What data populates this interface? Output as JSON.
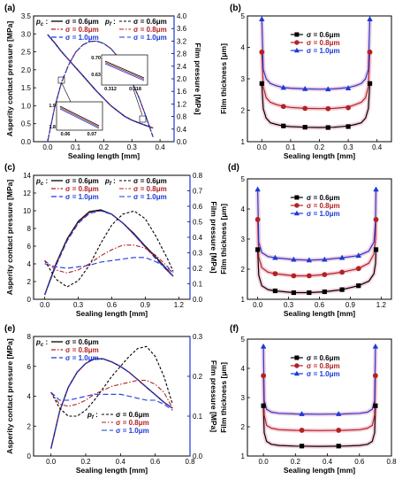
{
  "chart_data": [
    {
      "panel": "(a)",
      "type": "line",
      "xlabel": "Sealing length [mm]",
      "ylabel": "Asperity contact pressure [MPa]",
      "y2label": "Film pressure [MPa]",
      "xlim": [
        -0.05,
        0.45
      ],
      "xticks": [
        0.0,
        0.1,
        0.2,
        0.3,
        0.4
      ],
      "ylim": [
        0,
        3.5
      ],
      "yticks": [
        0,
        0.5,
        1.0,
        1.5,
        2.0,
        2.5,
        3.0,
        3.5
      ],
      "y2lim": [
        0,
        4.0
      ],
      "y2ticks": [
        0.0,
        0.4,
        0.8,
        1.2,
        1.6,
        2.0,
        2.4,
        2.8,
        3.2,
        3.6,
        4.0
      ],
      "legend": {
        "pc_label": "p",
        "pc_sub": "c",
        "pf_label": "p",
        "pf_sub": "f",
        "entries": [
          "σ = 0.6μm",
          "σ = 0.8μm",
          "σ = 1.0μm"
        ]
      },
      "insets": [
        {
          "ticks_y": [
            "0.70",
            "0.63"
          ],
          "ticks_x": [
            "0.312",
            "0.318"
          ]
        },
        {
          "ticks_y": [
            "1.9",
            "1.8"
          ],
          "ticks_x": [
            "0.06",
            "0.07"
          ]
        }
      ],
      "x": [
        0.0,
        0.025,
        0.05,
        0.075,
        0.1,
        0.125,
        0.15,
        0.175,
        0.2,
        0.225,
        0.25,
        0.275,
        0.3,
        0.325,
        0.35,
        0.375
      ],
      "series": [
        {
          "name": "p_c σ = 0.6μm",
          "axis": "y",
          "values": [
            2.98,
            2.75,
            2.5,
            2.28,
            2.06,
            1.84,
            1.62,
            1.4,
            1.2,
            1.0,
            0.85,
            0.7,
            0.6,
            0.52,
            0.45,
            0.38
          ]
        },
        {
          "name": "p_c σ = 0.8μm",
          "axis": "y",
          "values": [
            2.98,
            2.75,
            2.5,
            2.28,
            2.06,
            1.84,
            1.62,
            1.4,
            1.2,
            1.0,
            0.85,
            0.7,
            0.6,
            0.52,
            0.45,
            0.38
          ]
        },
        {
          "name": "p_c σ = 1.0μm",
          "axis": "y",
          "values": [
            2.98,
            2.75,
            2.5,
            2.28,
            2.06,
            1.84,
            1.62,
            1.4,
            1.2,
            1.0,
            0.85,
            0.7,
            0.6,
            0.52,
            0.45,
            0.38
          ]
        },
        {
          "name": "p_f σ = 0.6μm",
          "axis": "y2",
          "values": [
            0.0,
            1.1,
            1.9,
            2.45,
            2.85,
            3.08,
            3.19,
            3.2,
            3.12,
            2.96,
            2.7,
            2.35,
            1.9,
            1.4,
            0.8,
            0.15
          ]
        },
        {
          "name": "p_f σ = 0.8μm",
          "axis": "y2",
          "values": [
            0.0,
            1.1,
            1.9,
            2.45,
            2.85,
            3.08,
            3.19,
            3.2,
            3.12,
            2.96,
            2.7,
            2.35,
            1.9,
            1.4,
            0.8,
            0.15
          ]
        },
        {
          "name": "p_f σ = 1.0μm",
          "axis": "y2",
          "values": [
            0.0,
            1.1,
            1.9,
            2.45,
            2.85,
            3.08,
            3.19,
            3.2,
            3.12,
            2.96,
            2.7,
            2.35,
            1.9,
            1.4,
            0.8,
            0.15
          ]
        }
      ]
    },
    {
      "panel": "(b)",
      "type": "line",
      "xlabel": "Sealing length [mm]",
      "ylabel": "Film thickness [μm]",
      "xlim": [
        -0.05,
        0.45
      ],
      "xticks": [
        0.0,
        0.1,
        0.2,
        0.3,
        0.4
      ],
      "ylim": [
        1,
        5
      ],
      "yticks": [
        1,
        2,
        3,
        4,
        5
      ],
      "legend": {
        "entries": [
          "σ = 0.6μm",
          "σ = 0.8μm",
          "σ = 1.0μm"
        ]
      },
      "x": [
        0.0,
        0.005,
        0.015,
        0.03,
        0.05,
        0.075,
        0.1,
        0.15,
        0.2,
        0.25,
        0.3,
        0.325,
        0.345,
        0.36,
        0.37,
        0.375
      ],
      "series": [
        {
          "name": "σ = 0.6μm",
          "values": [
            2.85,
            2.05,
            1.75,
            1.6,
            1.55,
            1.5,
            1.48,
            1.46,
            1.45,
            1.46,
            1.5,
            1.55,
            1.6,
            1.75,
            2.05,
            2.85
          ]
        },
        {
          "name": "σ = 0.8μm",
          "values": [
            3.85,
            2.75,
            2.4,
            2.25,
            2.18,
            2.12,
            2.09,
            2.06,
            2.05,
            2.06,
            2.1,
            2.18,
            2.25,
            2.4,
            2.75,
            3.85
          ]
        },
        {
          "name": "σ = 1.0μm",
          "values": [
            4.9,
            3.3,
            3.0,
            2.85,
            2.78,
            2.72,
            2.7,
            2.68,
            2.67,
            2.68,
            2.72,
            2.78,
            2.85,
            3.0,
            3.3,
            4.9
          ]
        }
      ],
      "markers": [
        {
          "series": 0,
          "x": [
            0.0,
            0.075,
            0.15,
            0.23,
            0.3,
            0.375
          ],
          "y": [
            2.85,
            1.5,
            1.46,
            1.45,
            1.48,
            2.85
          ]
        },
        {
          "series": 1,
          "x": [
            0.0,
            0.075,
            0.15,
            0.23,
            0.3,
            0.375
          ],
          "y": [
            3.85,
            2.12,
            2.06,
            2.05,
            2.08,
            3.85
          ]
        },
        {
          "series": 2,
          "x": [
            0.0,
            0.075,
            0.15,
            0.23,
            0.3,
            0.375
          ],
          "y": [
            4.9,
            2.72,
            2.68,
            2.67,
            2.7,
            4.9
          ]
        }
      ]
    },
    {
      "panel": "(c)",
      "type": "line",
      "xlabel": "Sealing length [mm]",
      "ylabel": "Asperity contact pressure [MPa]",
      "y2label": "Film pressure [MPa]",
      "xlim": [
        -0.1,
        1.3
      ],
      "xticks": [
        0.0,
        0.3,
        0.6,
        0.9,
        1.2
      ],
      "ylim": [
        0,
        14
      ],
      "yticks": [
        0,
        2,
        4,
        6,
        8,
        10,
        12,
        14
      ],
      "y2lim": [
        0,
        0.8
      ],
      "y2ticks": [
        0.0,
        0.1,
        0.2,
        0.3,
        0.4,
        0.5,
        0.6,
        0.7,
        0.8
      ],
      "legend": {
        "pc_label": "p",
        "pc_sub": "c",
        "pf_label": "p",
        "pf_sub": "f",
        "entries": [
          "σ = 0.6μm",
          "σ = 0.8μm",
          "σ = 1.0μm"
        ]
      },
      "x": [
        0.0,
        0.1,
        0.2,
        0.3,
        0.4,
        0.5,
        0.6,
        0.7,
        0.8,
        0.9,
        1.0,
        1.1,
        1.15
      ],
      "series": [
        {
          "name": "p_c σ = 0.6μm",
          "axis": "y",
          "values": [
            0.5,
            4.0,
            6.8,
            8.8,
            9.9,
            10.1,
            9.6,
            8.6,
            7.4,
            6.0,
            4.7,
            3.3,
            2.6
          ]
        },
        {
          "name": "p_c σ = 0.8μm",
          "axis": "y",
          "values": [
            0.5,
            3.9,
            6.7,
            8.7,
            9.8,
            10.0,
            9.6,
            8.6,
            7.3,
            5.9,
            4.6,
            3.2,
            2.6
          ]
        },
        {
          "name": "p_c σ = 1.0μm",
          "axis": "y",
          "values": [
            0.5,
            3.8,
            6.6,
            8.6,
            9.7,
            10.0,
            9.6,
            8.6,
            7.3,
            5.9,
            4.5,
            3.2,
            2.6
          ]
        },
        {
          "name": "p_f σ = 0.6μm",
          "axis": "y2",
          "values": [
            0.25,
            0.13,
            0.08,
            0.12,
            0.22,
            0.36,
            0.48,
            0.55,
            0.57,
            0.52,
            0.4,
            0.26,
            0.18
          ]
        },
        {
          "name": "p_f σ = 0.8μm",
          "axis": "y2",
          "values": [
            0.25,
            0.19,
            0.17,
            0.19,
            0.23,
            0.28,
            0.32,
            0.35,
            0.35,
            0.33,
            0.28,
            0.21,
            0.17
          ]
        },
        {
          "name": "p_f σ = 1.0μm",
          "axis": "y2",
          "values": [
            0.23,
            0.21,
            0.2,
            0.21,
            0.22,
            0.24,
            0.25,
            0.26,
            0.27,
            0.27,
            0.24,
            0.2,
            0.17
          ]
        }
      ]
    },
    {
      "panel": "(d)",
      "type": "line",
      "xlabel": "Sealing length [mm]",
      "ylabel": "Film thickness [μm]",
      "xlim": [
        -0.1,
        1.3
      ],
      "xticks": [
        0.0,
        0.3,
        0.6,
        0.9,
        1.2
      ],
      "ylim": [
        1,
        5
      ],
      "yticks": [
        1,
        2,
        3,
        4,
        5
      ],
      "legend": {
        "entries": [
          "σ = 0.6μm",
          "σ = 0.8μm",
          "σ = 1.0μm"
        ]
      },
      "x": [
        0.0,
        0.01,
        0.04,
        0.1,
        0.17,
        0.35,
        0.5,
        0.65,
        0.82,
        0.98,
        1.08,
        1.13,
        1.145,
        1.15
      ],
      "series": [
        {
          "name": "σ = 0.6μm",
          "values": [
            2.65,
            1.8,
            1.45,
            1.32,
            1.28,
            1.22,
            1.22,
            1.25,
            1.32,
            1.45,
            1.6,
            1.85,
            2.2,
            2.65
          ]
        },
        {
          "name": "σ = 0.8μm",
          "values": [
            3.65,
            2.4,
            2.05,
            1.9,
            1.85,
            1.78,
            1.78,
            1.82,
            1.9,
            2.02,
            2.2,
            2.5,
            3.0,
            3.65
          ]
        },
        {
          "name": "σ = 1.0μm",
          "values": [
            4.65,
            2.9,
            2.55,
            2.42,
            2.38,
            2.32,
            2.3,
            2.32,
            2.38,
            2.45,
            2.6,
            2.9,
            3.6,
            4.65
          ]
        }
      ],
      "markers": [
        {
          "series": 0,
          "x": [
            0.0,
            0.17,
            0.35,
            0.5,
            0.65,
            0.82,
            0.98,
            1.15
          ],
          "y": [
            2.65,
            1.28,
            1.22,
            1.22,
            1.25,
            1.32,
            1.45,
            2.65
          ]
        },
        {
          "series": 1,
          "x": [
            0.0,
            0.17,
            0.35,
            0.5,
            0.65,
            0.82,
            0.98,
            1.15
          ],
          "y": [
            3.65,
            1.85,
            1.78,
            1.78,
            1.82,
            1.9,
            2.02,
            3.65
          ]
        },
        {
          "series": 2,
          "x": [
            0.0,
            0.17,
            0.35,
            0.5,
            0.65,
            0.82,
            0.98,
            1.15
          ],
          "y": [
            4.65,
            2.38,
            2.32,
            2.3,
            2.32,
            2.38,
            2.45,
            4.65
          ]
        }
      ]
    },
    {
      "panel": "(e)",
      "type": "line",
      "xlabel": "Sealing length [mm]",
      "ylabel": "Asperity contact pressure [MPa]",
      "y2label": "Film pressure [MPa]",
      "xlim": [
        -0.1,
        0.8
      ],
      "xticks": [
        0.0,
        0.2,
        0.4,
        0.6,
        0.8
      ],
      "ylim": [
        0,
        8
      ],
      "yticks": [
        0,
        2,
        4,
        6,
        8
      ],
      "y2lim": [
        0,
        0.3
      ],
      "y2ticks": [
        0.0,
        0.1,
        0.2,
        0.3
      ],
      "legend": {
        "pc_label": "p",
        "pc_sub": "c",
        "pf_label": "p",
        "pf_sub": "f",
        "entries": [
          "σ = 0.6μm",
          "σ = 0.8μm",
          "σ = 1.0μm"
        ]
      },
      "x": [
        0.0,
        0.05,
        0.1,
        0.15,
        0.2,
        0.25,
        0.3,
        0.35,
        0.4,
        0.45,
        0.5,
        0.55,
        0.6,
        0.65,
        0.7
      ],
      "series": [
        {
          "name": "p_c σ = 0.6μm",
          "axis": "y",
          "values": [
            0.5,
            3.0,
            4.6,
            5.6,
            6.2,
            6.5,
            6.5,
            6.3,
            6.0,
            5.6,
            5.1,
            4.6,
            4.1,
            3.6,
            3.2
          ]
        },
        {
          "name": "p_c σ = 0.8μm",
          "axis": "y",
          "values": [
            0.5,
            3.0,
            4.6,
            5.6,
            6.2,
            6.5,
            6.5,
            6.3,
            6.0,
            5.6,
            5.1,
            4.6,
            4.1,
            3.6,
            3.2
          ]
        },
        {
          "name": "p_c σ = 1.0μm",
          "axis": "y",
          "values": [
            0.5,
            3.0,
            4.6,
            5.6,
            6.2,
            6.5,
            6.5,
            6.3,
            6.0,
            5.6,
            5.1,
            4.6,
            4.1,
            3.6,
            3.2
          ]
        },
        {
          "name": "p_f σ = 0.6μm",
          "axis": "y2",
          "values": [
            0.16,
            0.12,
            0.1,
            0.1,
            0.115,
            0.14,
            0.17,
            0.2,
            0.225,
            0.25,
            0.27,
            0.275,
            0.25,
            0.2,
            0.13
          ]
        },
        {
          "name": "p_f σ = 0.8μm",
          "axis": "y2",
          "values": [
            0.16,
            0.13,
            0.125,
            0.13,
            0.14,
            0.155,
            0.165,
            0.175,
            0.18,
            0.185,
            0.19,
            0.19,
            0.18,
            0.16,
            0.12
          ]
        },
        {
          "name": "p_f σ = 1.0μm",
          "axis": "y2",
          "values": [
            0.16,
            0.14,
            0.14,
            0.145,
            0.15,
            0.155,
            0.155,
            0.155,
            0.155,
            0.15,
            0.145,
            0.14,
            0.14,
            0.13,
            0.115
          ]
        }
      ]
    },
    {
      "panel": "(f)",
      "type": "line",
      "xlabel": "Sealing length [mm]",
      "ylabel": "Film thickness [μm]",
      "xlim": [
        -0.1,
        0.8
      ],
      "xticks": [
        0.0,
        0.2,
        0.4,
        0.6,
        0.8
      ],
      "ylim": [
        1,
        5
      ],
      "yticks": [
        1,
        2,
        3,
        4,
        5
      ],
      "legend": {
        "entries": [
          "σ = 0.6μm",
          "σ = 0.8μm",
          "σ = 1.0μm"
        ]
      },
      "x": [
        0.0,
        0.005,
        0.02,
        0.05,
        0.1,
        0.2,
        0.35,
        0.5,
        0.6,
        0.65,
        0.68,
        0.695,
        0.7
      ],
      "series": [
        {
          "name": "σ = 0.6μm",
          "values": [
            2.72,
            1.8,
            1.5,
            1.4,
            1.36,
            1.34,
            1.33,
            1.34,
            1.36,
            1.4,
            1.5,
            1.8,
            2.72
          ]
        },
        {
          "name": "σ = 0.8μm",
          "values": [
            3.75,
            2.4,
            2.05,
            1.95,
            1.9,
            1.88,
            1.87,
            1.88,
            1.9,
            1.95,
            2.05,
            2.4,
            3.75
          ]
        },
        {
          "name": "σ = 1.0μm",
          "values": [
            4.75,
            2.9,
            2.6,
            2.5,
            2.46,
            2.44,
            2.43,
            2.44,
            2.46,
            2.5,
            2.6,
            2.9,
            4.75
          ]
        }
      ],
      "markers": [
        {
          "series": 0,
          "x": [
            0.0,
            0.24,
            0.47,
            0.7
          ],
          "y": [
            2.72,
            1.34,
            1.34,
            2.72
          ]
        },
        {
          "series": 1,
          "x": [
            0.0,
            0.24,
            0.47,
            0.7
          ],
          "y": [
            3.75,
            1.88,
            1.88,
            3.75
          ]
        },
        {
          "series": 2,
          "x": [
            0.0,
            0.24,
            0.47,
            0.7
          ],
          "y": [
            4.75,
            2.44,
            2.44,
            4.75
          ]
        }
      ]
    }
  ]
}
